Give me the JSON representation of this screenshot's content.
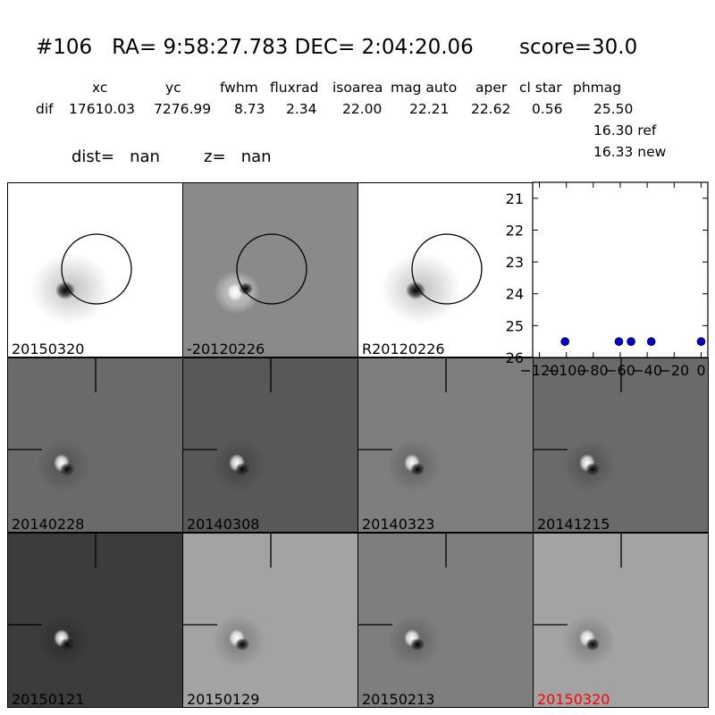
{
  "header": {
    "title": "#106   RA= 9:58:27.783 DEC= 2:04:20.06       score=30.0",
    "columns": {
      "xc": "xc",
      "yc": "yc",
      "fwhm": "fwhm",
      "fluxrad": "fluxrad",
      "isoarea": "isoarea",
      "mag_auto": "mag auto",
      "aper": "aper",
      "cl_star": "cl star",
      "phmag": "phmag"
    },
    "row": {
      "label": "dif",
      "xc": "17610.03",
      "yc": "7276.99",
      "fwhm": "8.73",
      "fluxrad": "2.34",
      "isoarea": "22.00",
      "mag_auto": "22.21",
      "aper": "22.62",
      "cl_star": "0.56",
      "phmag": "25.50"
    },
    "ref_mag": "16.30 ref",
    "new_mag": "16.33 new",
    "dist_label": "dist=   nan",
    "z_label": "z=   nan"
  },
  "panels": [
    {
      "label": "20150320",
      "style": "white",
      "circle": true
    },
    {
      "label": "-20120226",
      "style": "grey-diff",
      "circle": true
    },
    {
      "label": "R20120226",
      "style": "white",
      "circle": true
    },
    {
      "label": "20140228",
      "style": "dark",
      "crosshair": true
    },
    {
      "label": "20140308",
      "style": "darker",
      "crosshair": true
    },
    {
      "label": "20140323",
      "style": "mid",
      "crosshair": true
    },
    {
      "label": "20141215",
      "style": "dark",
      "crosshair": true
    },
    {
      "label": "20150121",
      "style": "darkest",
      "crosshair": true
    },
    {
      "label": "20150129",
      "style": "light",
      "crosshair": true
    },
    {
      "label": "20150213",
      "style": "mid",
      "crosshair": true
    },
    {
      "label": "20150320",
      "style": "light",
      "crosshair": true,
      "label_color": "#ff0000"
    }
  ],
  "chart_data": {
    "type": "scatter",
    "x": [
      -101,
      -61,
      -52,
      -37,
      0
    ],
    "y": [
      25.5,
      25.5,
      25.5,
      25.5,
      25.5
    ],
    "xlim": [
      -125,
      5
    ],
    "ylim": [
      26,
      20.5
    ],
    "xticks": [
      "−120",
      "−100",
      "−80",
      "−60",
      "−40",
      "−20",
      "0"
    ],
    "xtick_values": [
      -120,
      -100,
      -80,
      -60,
      -40,
      -20,
      0
    ],
    "yticks": [
      "21",
      "22",
      "23",
      "24",
      "25",
      "26"
    ],
    "ytick_values": [
      21,
      22,
      23,
      24,
      25,
      26
    ],
    "marker_color": "#0000cc",
    "title": "",
    "xlabel": "",
    "ylabel": ""
  }
}
